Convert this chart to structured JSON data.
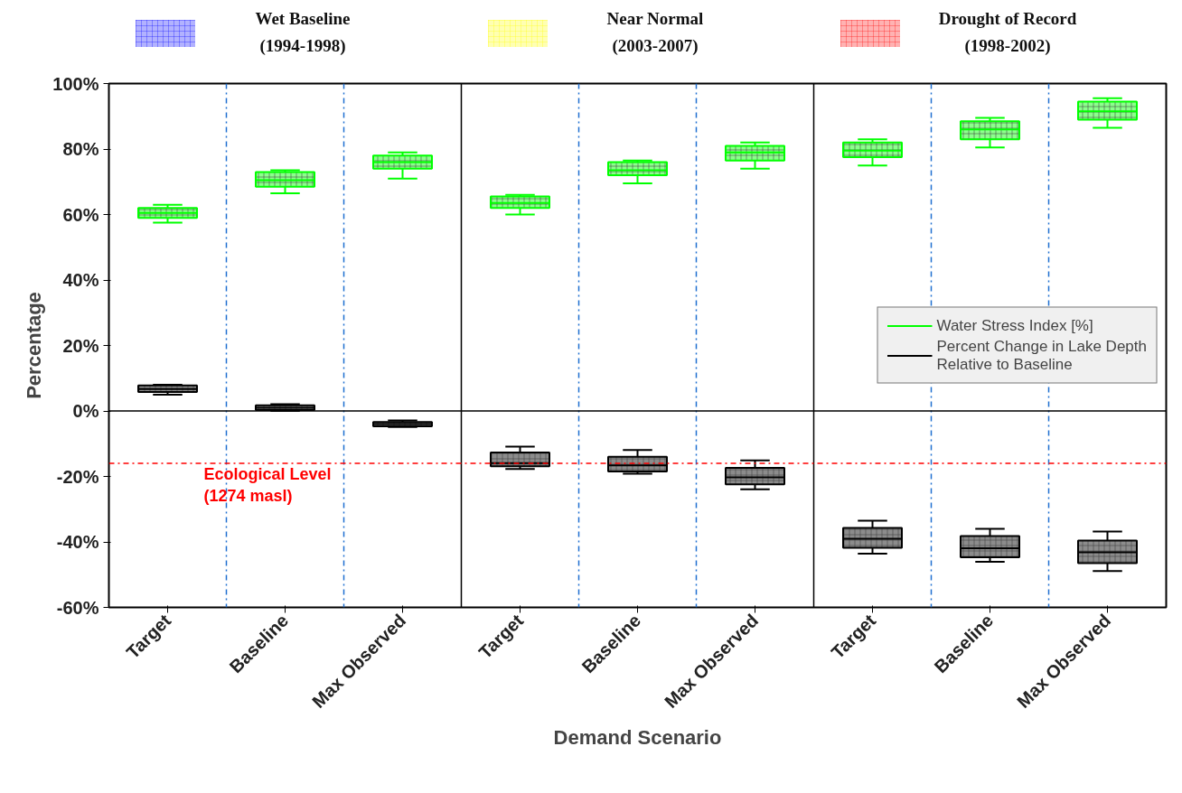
{
  "chart_data": {
    "type": "box",
    "xlabel": "Demand Scenario",
    "ylabel": "Percentage",
    "categories": [
      "Target",
      "Baseline",
      "Max Observed",
      "Target",
      "Baseline",
      "Max Observed",
      "Target",
      "Baseline",
      "Max Observed"
    ],
    "ylim": [
      -60,
      100
    ],
    "yticks": [
      {
        "value": -60,
        "label": "-60%"
      },
      {
        "value": -40,
        "label": "-40%"
      },
      {
        "value": -20,
        "label": "-20%"
      },
      {
        "value": 0,
        "label": "0%"
      },
      {
        "value": 20,
        "label": "20%"
      },
      {
        "value": 40,
        "label": "40%"
      },
      {
        "value": 60,
        "label": "60%"
      },
      {
        "value": 80,
        "label": "80%"
      },
      {
        "value": 100,
        "label": "100%"
      }
    ],
    "grid": false,
    "legend": "right",
    "series": [
      {
        "name": "Water Stress Index [%]",
        "color": "#00ff00",
        "boxes": [
          {
            "low": 57.5,
            "q1": 59,
            "median": 60.5,
            "q3": 62,
            "high": 63
          },
          {
            "low": 66.5,
            "q1": 68.5,
            "median": 70.5,
            "q3": 73,
            "high": 73.5
          },
          {
            "low": 71,
            "q1": 74,
            "median": 76,
            "q3": 78,
            "high": 79
          },
          {
            "low": 60,
            "q1": 62,
            "median": 63.5,
            "q3": 65.5,
            "high": 66
          },
          {
            "low": 69.5,
            "q1": 72,
            "median": 73.5,
            "q3": 76,
            "high": 76.5
          },
          {
            "low": 74,
            "q1": 76.5,
            "median": 79,
            "q3": 81,
            "high": 82
          },
          {
            "low": 75,
            "q1": 77.5,
            "median": 79.5,
            "q3": 82,
            "high": 83
          },
          {
            "low": 80.5,
            "q1": 83,
            "median": 86,
            "q3": 88.5,
            "high": 89.5
          },
          {
            "low": 86.5,
            "q1": 89,
            "median": 91.5,
            "q3": 94.5,
            "high": 95.5
          }
        ]
      },
      {
        "name": "Percent Change in Lake Depth\nRelative to Baseline",
        "color": "#000000",
        "boxes": [
          {
            "low": 5.0,
            "q1": 5.8,
            "median": 6.7,
            "q3": 7.8,
            "high": 8.0
          },
          {
            "low": 0,
            "q1": 0.3,
            "median": 1,
            "q3": 1.7,
            "high": 2.1
          },
          {
            "low": -4.9,
            "q1": -4.7,
            "median": -4,
            "q3": -3.4,
            "high": -2.9
          },
          {
            "low": -17.7,
            "q1": -16.9,
            "median": -15.9,
            "q3": -12.7,
            "high": -10.9
          },
          {
            "low": -19.2,
            "q1": -18.5,
            "median": -16.6,
            "q3": -14,
            "high": -11.9
          },
          {
            "low": -23.9,
            "q1": -22.4,
            "median": -20.3,
            "q3": -17.4,
            "high": -15.1
          },
          {
            "low": -43.6,
            "q1": -41.8,
            "median": -39,
            "q3": -35.7,
            "high": -33.5
          },
          {
            "low": -46.1,
            "q1": -44.7,
            "median": -41.9,
            "q3": -38.2,
            "high": -36
          },
          {
            "low": -48.9,
            "q1": -46.5,
            "median": -43.2,
            "q3": -39.6,
            "high": -36.8
          }
        ]
      }
    ],
    "annotations": [
      "Wet Baseline\n(1994-1998)",
      "Near Normal\n(2003-2007)",
      "Drought of Record\n(1998-2002)"
    ],
    "ref_lines": [
      {
        "axis": "y",
        "value": -16,
        "label": "Ecological Level\n(1274 masl)",
        "color": "#ff0000",
        "line_style": "dashdot"
      },
      {
        "axis": "y",
        "value": 0,
        "color": "#000000",
        "line_style": "solid"
      }
    ]
  }
}
